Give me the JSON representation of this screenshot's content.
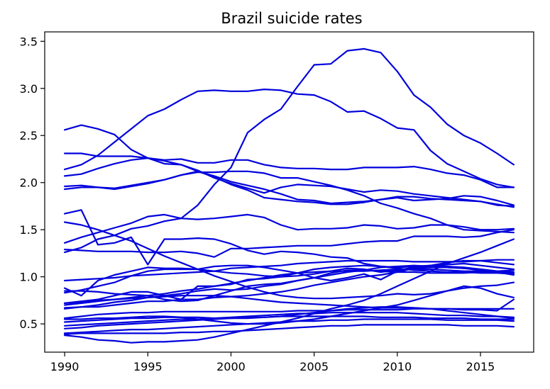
{
  "chart_data": {
    "type": "line",
    "title": "Brazil suicide rates",
    "xlabel": "",
    "ylabel": "",
    "xlim": [
      1988.8,
      2018.2
    ],
    "ylim": [
      0.2,
      3.6
    ],
    "xticks": [
      1990,
      1995,
      2000,
      2005,
      2010,
      2015
    ],
    "yticks": [
      0.5,
      1.0,
      1.5,
      2.0,
      2.5,
      3.0,
      3.5
    ],
    "xtick_labels": [
      "1990",
      "1995",
      "2000",
      "2005",
      "2010",
      "2015"
    ],
    "ytick_labels": [
      "0.5",
      "1.0",
      "1.5",
      "2.0",
      "2.5",
      "3.0",
      "3.5"
    ],
    "grid": false,
    "line_color": "#0000dd",
    "x": [
      1990,
      1991,
      1992,
      1993,
      1994,
      1995,
      1996,
      1997,
      1998,
      1999,
      2000,
      2001,
      2002,
      2003,
      2004,
      2005,
      2006,
      2007,
      2008,
      2009,
      2010,
      2011,
      2012,
      2013,
      2014,
      2015,
      2016,
      2017
    ],
    "series": [
      {
        "values": [
          2.56,
          2.61,
          2.57,
          2.51,
          2.35,
          2.26,
          2.2,
          2.19,
          2.12,
          2.07,
          2.01,
          1.97,
          1.93,
          1.88,
          1.82,
          1.81,
          1.78,
          1.79,
          1.8,
          1.82,
          1.84,
          1.81,
          1.82,
          1.83,
          1.86,
          1.85,
          1.81,
          1.76
        ]
      },
      {
        "values": [
          2.14,
          2.19,
          2.29,
          2.43,
          2.57,
          2.71,
          2.78,
          2.88,
          2.97,
          2.98,
          2.97,
          2.97,
          2.99,
          2.98,
          2.94,
          2.93,
          2.86,
          2.75,
          2.76,
          2.68,
          2.58,
          2.56,
          2.34,
          2.2,
          2.12,
          2.04,
          1.98,
          1.95
        ]
      },
      {
        "values": [
          2.31,
          2.31,
          2.28,
          2.28,
          2.28,
          2.26,
          2.24,
          2.25,
          2.21,
          2.21,
          2.24,
          2.24,
          2.19,
          2.16,
          2.15,
          2.15,
          2.14,
          2.14,
          2.16,
          2.16,
          2.16,
          2.17,
          2.14,
          2.1,
          2.08,
          2.03,
          1.95,
          1.95
        ]
      },
      {
        "values": [
          2.07,
          2.09,
          2.15,
          2.2,
          2.24,
          2.26,
          2.23,
          2.19,
          2.13,
          2.05,
          1.99,
          1.94,
          1.89,
          1.95,
          1.98,
          1.97,
          1.96,
          1.93,
          1.9,
          1.92,
          1.91,
          1.88,
          1.86,
          1.84,
          1.82,
          1.8,
          1.76,
          1.75
        ]
      },
      {
        "values": [
          1.96,
          1.97,
          1.95,
          1.94,
          1.97,
          2.0,
          2.03,
          2.08,
          2.11,
          2.11,
          2.12,
          2.12,
          2.1,
          2.05,
          2.05,
          2.01,
          1.97,
          1.92,
          1.86,
          1.78,
          1.73,
          1.67,
          1.62,
          1.55,
          1.5,
          1.49,
          1.48,
          1.47
        ]
      },
      {
        "values": [
          1.93,
          1.95,
          1.95,
          1.93,
          1.96,
          1.99,
          2.03,
          2.08,
          2.12,
          2.06,
          1.98,
          1.92,
          1.84,
          1.82,
          1.8,
          1.79,
          1.77,
          1.77,
          1.79,
          1.82,
          1.85,
          1.85,
          1.83,
          1.82,
          1.81,
          1.8,
          1.77,
          1.74
        ]
      },
      {
        "values": [
          1.67,
          1.71,
          1.34,
          1.36,
          1.42,
          1.13,
          1.4,
          1.4,
          1.41,
          1.4,
          1.35,
          1.28,
          1.24,
          1.27,
          1.26,
          1.24,
          1.21,
          1.2,
          1.14,
          1.11,
          1.09,
          1.07,
          1.06,
          1.05,
          1.05,
          1.04,
          1.04,
          1.03
        ]
      },
      {
        "values": [
          1.58,
          1.55,
          1.5,
          1.44,
          1.38,
          1.3,
          1.22,
          1.15,
          1.08,
          1.01,
          0.95,
          0.89,
          0.84,
          0.8,
          0.78,
          0.77,
          0.77,
          0.78,
          0.79,
          0.8,
          0.82,
          0.81,
          0.82,
          0.85,
          0.88,
          0.9,
          0.91,
          0.94
        ]
      },
      {
        "values": [
          1.36,
          1.42,
          1.47,
          1.52,
          1.57,
          1.64,
          1.66,
          1.62,
          1.61,
          1.62,
          1.64,
          1.66,
          1.63,
          1.55,
          1.5,
          1.51,
          1.51,
          1.52,
          1.55,
          1.54,
          1.51,
          1.52,
          1.55,
          1.55,
          1.53,
          1.5,
          1.5,
          1.51
        ]
      },
      {
        "values": [
          1.26,
          1.31,
          1.4,
          1.44,
          1.51,
          1.54,
          1.59,
          1.62,
          1.76,
          1.98,
          2.16,
          2.53,
          2.67,
          2.78,
          3.02,
          3.25,
          3.26,
          3.4,
          3.42,
          3.38,
          3.18,
          2.93,
          2.8,
          2.62,
          2.5,
          2.42,
          2.31,
          2.19
        ]
      },
      {
        "values": [
          1.29,
          1.28,
          1.27,
          1.27,
          1.27,
          1.26,
          1.26,
          1.27,
          1.25,
          1.21,
          1.3,
          1.3,
          1.31,
          1.32,
          1.33,
          1.33,
          1.33,
          1.35,
          1.37,
          1.38,
          1.38,
          1.43,
          1.43,
          1.43,
          1.42,
          1.43,
          1.47,
          1.5
        ]
      },
      {
        "values": [
          0.96,
          0.97,
          0.98,
          0.99,
          1.01,
          1.02,
          1.03,
          1.04,
          1.05,
          1.06,
          1.09,
          1.1,
          1.11,
          1.12,
          1.14,
          1.15,
          1.16,
          1.17,
          1.17,
          1.17,
          1.17,
          1.16,
          1.16,
          1.16,
          1.16,
          1.17,
          1.18,
          1.18
        ]
      },
      {
        "values": [
          0.83,
          0.86,
          0.9,
          0.94,
          1.01,
          1.06,
          1.08,
          1.08,
          1.08,
          1.06,
          1.04,
          1.03,
          1.01,
          1.0,
          1.01,
          1.03,
          1.06,
          1.09,
          1.08,
          1.05,
          1.07,
          1.1,
          1.12,
          1.13,
          1.14,
          1.12,
          1.1,
          1.08
        ]
      },
      {
        "values": [
          0.88,
          0.8,
          0.96,
          1.02,
          1.06,
          1.1,
          1.09,
          1.09,
          1.08,
          1.11,
          1.12,
          1.12,
          1.1,
          1.07,
          1.04,
          0.99,
          0.96,
          0.99,
          1.03,
          0.97,
          1.06,
          1.09,
          1.1,
          1.1,
          1.09,
          1.07,
          1.05,
          1.02
        ]
      },
      {
        "values": [
          0.85,
          0.85,
          0.84,
          0.82,
          0.81,
          0.8,
          0.76,
          0.74,
          0.75,
          0.8,
          0.85,
          0.9,
          0.92,
          0.93,
          0.96,
          0.99,
          1.04,
          1.07,
          1.07,
          1.06,
          1.05,
          1.05,
          1.04,
          1.04,
          1.04,
          1.05,
          1.06,
          1.07
        ]
      },
      {
        "values": [
          0.72,
          0.74,
          0.76,
          0.8,
          0.84,
          0.84,
          0.8,
          0.76,
          0.9,
          0.9,
          0.92,
          0.97,
          0.98,
          1.0,
          1.04,
          1.08,
          1.1,
          1.11,
          1.12,
          1.11,
          1.1,
          1.11,
          1.12,
          1.11,
          1.1,
          1.08,
          1.06,
          1.05
        ]
      },
      {
        "values": [
          0.7,
          0.72,
          0.74,
          0.76,
          0.78,
          0.8,
          0.82,
          0.85,
          0.87,
          0.9,
          0.93,
          0.96,
          0.99,
          1.02,
          1.04,
          1.05,
          1.06,
          1.06,
          1.06,
          1.07,
          1.08,
          1.08,
          1.08,
          1.07,
          1.06,
          1.06,
          1.05,
          1.04
        ]
      },
      {
        "values": [
          0.66,
          0.68,
          0.7,
          0.73,
          0.75,
          0.78,
          0.8,
          0.82,
          0.85,
          0.87,
          0.86,
          0.87,
          0.9,
          0.92,
          0.96,
          0.99,
          1.02,
          1.05,
          1.07,
          1.1,
          1.11,
          1.12,
          1.11,
          1.1,
          1.09,
          1.08,
          1.06,
          1.04
        ]
      },
      {
        "values": [
          0.67,
          0.68,
          0.68,
          0.7,
          0.72,
          0.74,
          0.74,
          0.76,
          0.76,
          0.78,
          0.79,
          0.8,
          0.82,
          0.84,
          0.87,
          0.91,
          0.94,
          0.97,
          1.0,
          1.02,
          1.05,
          1.09,
          1.12,
          1.15,
          1.17,
          1.17,
          1.15,
          1.13
        ]
      },
      {
        "values": [
          0.72,
          0.73,
          0.75,
          0.76,
          0.77,
          0.78,
          0.79,
          0.8,
          0.8,
          0.8,
          0.79,
          0.77,
          0.75,
          0.73,
          0.72,
          0.71,
          0.7,
          0.69,
          0.68,
          0.67,
          0.67,
          0.67,
          0.66,
          0.66,
          0.65,
          0.65,
          0.64,
          0.76
        ]
      },
      {
        "values": [
          0.56,
          0.58,
          0.6,
          0.61,
          0.62,
          0.62,
          0.63,
          0.63,
          0.63,
          0.63,
          0.63,
          0.63,
          0.63,
          0.63,
          0.64,
          0.64,
          0.64,
          0.65,
          0.65,
          0.65,
          0.65,
          0.66,
          0.66,
          0.66,
          0.66,
          0.66,
          0.66,
          0.66
        ]
      },
      {
        "values": [
          0.55,
          0.55,
          0.56,
          0.56,
          0.57,
          0.58,
          0.58,
          0.57,
          0.55,
          0.53,
          0.51,
          0.5,
          0.5,
          0.51,
          0.53,
          0.55,
          0.58,
          0.61,
          0.64,
          0.67,
          0.7,
          0.75,
          0.8,
          0.85,
          0.9,
          0.88,
          0.82,
          0.78
        ]
      },
      {
        "values": [
          0.52,
          0.53,
          0.54,
          0.55,
          0.56,
          0.56,
          0.57,
          0.57,
          0.57,
          0.56,
          0.56,
          0.57,
          0.57,
          0.58,
          0.6,
          0.62,
          0.64,
          0.66,
          0.67,
          0.68,
          0.68,
          0.67,
          0.66,
          0.64,
          0.62,
          0.6,
          0.58,
          0.56
        ]
      },
      {
        "values": [
          0.48,
          0.49,
          0.5,
          0.51,
          0.52,
          0.53,
          0.54,
          0.55,
          0.55,
          0.56,
          0.57,
          0.58,
          0.59,
          0.6,
          0.61,
          0.61,
          0.62,
          0.62,
          0.62,
          0.62,
          0.62,
          0.61,
          0.6,
          0.59,
          0.59,
          0.58,
          0.58,
          0.57
        ]
      },
      {
        "values": [
          0.45,
          0.46,
          0.48,
          0.49,
          0.5,
          0.51,
          0.52,
          0.53,
          0.54,
          0.55,
          0.56,
          0.56,
          0.57,
          0.58,
          0.58,
          0.58,
          0.58,
          0.58,
          0.58,
          0.57,
          0.57,
          0.57,
          0.56,
          0.56,
          0.56,
          0.55,
          0.55,
          0.55
        ]
      },
      {
        "values": [
          0.4,
          0.41,
          0.42,
          0.43,
          0.44,
          0.44,
          0.45,
          0.46,
          0.47,
          0.48,
          0.49,
          0.5,
          0.51,
          0.52,
          0.53,
          0.53,
          0.54,
          0.54,
          0.55,
          0.55,
          0.55,
          0.55,
          0.55,
          0.54,
          0.54,
          0.54,
          0.54,
          0.53
        ]
      },
      {
        "values": [
          0.39,
          0.4,
          0.4,
          0.4,
          0.4,
          0.4,
          0.4,
          0.41,
          0.41,
          0.42,
          0.42,
          0.43,
          0.44,
          0.45,
          0.46,
          0.47,
          0.48,
          0.48,
          0.49,
          0.49,
          0.49,
          0.49,
          0.49,
          0.49,
          0.48,
          0.48,
          0.48,
          0.47
        ]
      },
      {
        "values": [
          0.38,
          0.36,
          0.33,
          0.32,
          0.3,
          0.31,
          0.31,
          0.32,
          0.33,
          0.36,
          0.4,
          0.44,
          0.48,
          0.52,
          0.56,
          0.61,
          0.66,
          0.7,
          0.75,
          0.82,
          0.9,
          0.98,
          1.06,
          1.14,
          1.2,
          1.26,
          1.33,
          1.4
        ]
      }
    ]
  }
}
